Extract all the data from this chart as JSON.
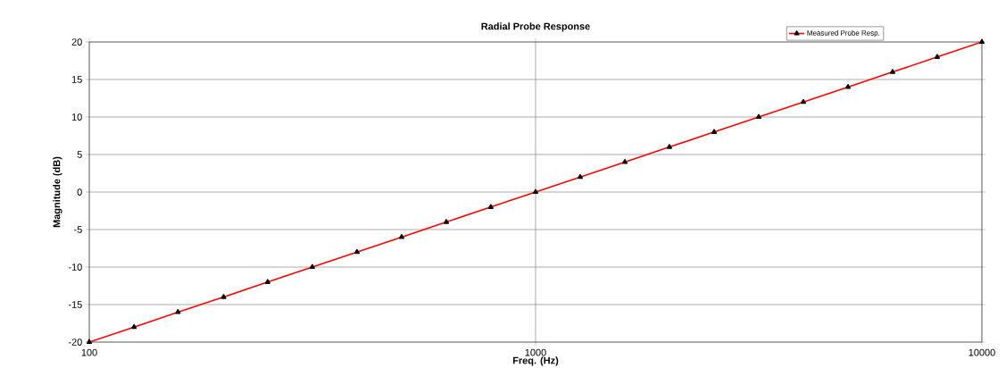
{
  "chart_data": {
    "type": "line",
    "title": "Radial Probe Response",
    "xlabel": "Freq. (Hz)",
    "ylabel": "Magnitude (dB)",
    "log": "x",
    "xlim": [
      100,
      10000
    ],
    "xticks": [
      100,
      1000,
      10000
    ],
    "ylim": [
      -20,
      20
    ],
    "yticks": [
      -20,
      -15,
      -10,
      -5,
      0,
      5,
      10,
      15,
      20
    ],
    "grid": true,
    "legend": "top right",
    "marker": "triangle",
    "line_style": "solid",
    "x": [
      100,
      126,
      158,
      200,
      251,
      316,
      398,
      501,
      631,
      794,
      1000,
      1259,
      1585,
      1995,
      2512,
      3162,
      3981,
      5012,
      6310,
      7943,
      10000
    ],
    "series": [
      {
        "name": "Measured Probe Resp.",
        "color": "#ff0000",
        "values": [
          -20,
          -18,
          -16,
          -14,
          -12,
          -10,
          -8,
          -6,
          -4,
          -2,
          0,
          2,
          4,
          6,
          8,
          10,
          12,
          14,
          16,
          18,
          20
        ]
      }
    ]
  }
}
